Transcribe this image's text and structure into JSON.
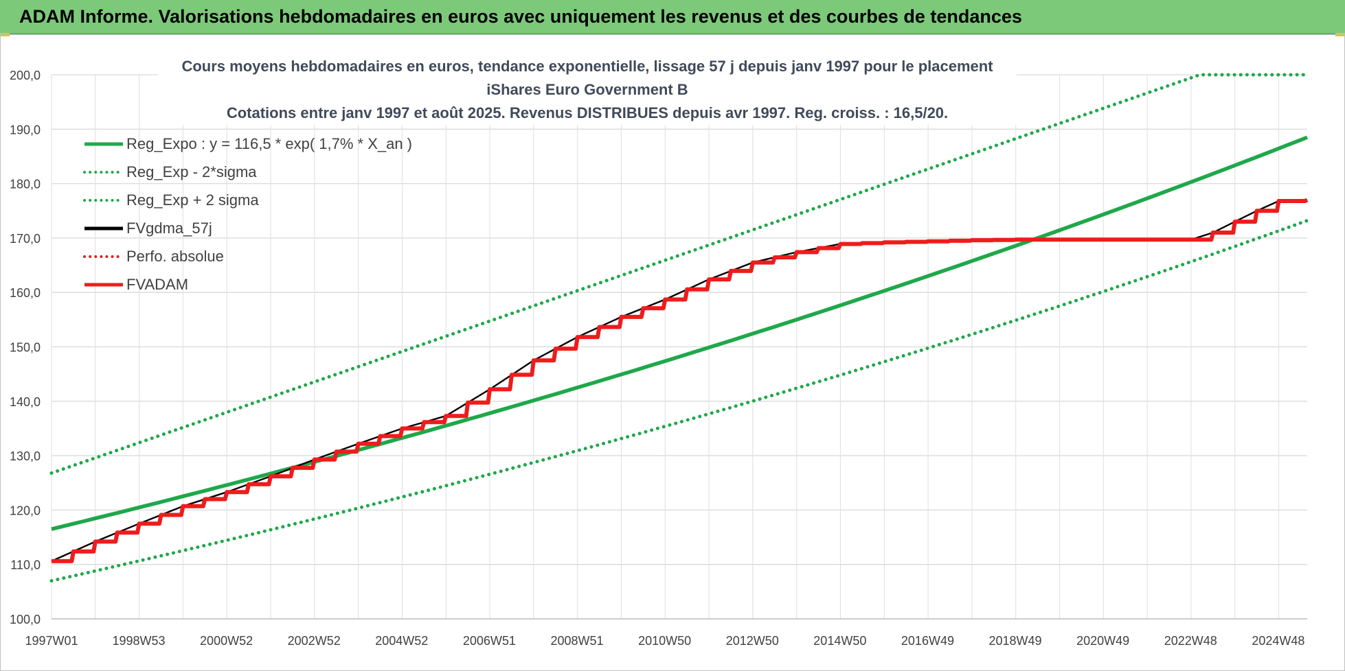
{
  "header": {
    "title": "ADAM Informe. Valorisations hebdomadaires en euros avec uniquement les revenus et des courbes de tendances"
  },
  "chart_data": {
    "type": "line",
    "title": "Cours moyens hebdomadaires en euros, tendance exponentielle, lissage 57 j depuis janv 1997 pour le placement iShares Euro Government B",
    "subtitle": "Cotations entre janv 1997 et août 2025.  Revenus DISTRIBUES depuis avr 1997. Reg. croiss. : 16,5/20.",
    "xlabel": "",
    "ylabel": "",
    "xlim": [
      1997.0,
      2025.65
    ],
    "ylim": [
      100,
      200
    ],
    "y_ticks": [
      "100,0",
      "110,0",
      "120,0",
      "130,0",
      "140,0",
      "150,0",
      "160,0",
      "170,0",
      "180,0",
      "190,0",
      "200,0"
    ],
    "x_ticks": [
      {
        "label": "1997W01",
        "x": 1997.0
      },
      {
        "label": "1998W53",
        "x": 1998.99
      },
      {
        "label": "2000W52",
        "x": 2000.99
      },
      {
        "label": "2002W52",
        "x": 2002.99
      },
      {
        "label": "2004W52",
        "x": 2004.99
      },
      {
        "label": "2006W51",
        "x": 2006.99
      },
      {
        "label": "2008W51",
        "x": 2008.99
      },
      {
        "label": "2010W50",
        "x": 2010.99
      },
      {
        "label": "2012W50",
        "x": 2012.99
      },
      {
        "label": "2014W50",
        "x": 2014.99
      },
      {
        "label": "2016W49",
        "x": 2016.99
      },
      {
        "label": "2018W49",
        "x": 2018.99
      },
      {
        "label": "2020W49",
        "x": 2020.99
      },
      {
        "label": "2022W48",
        "x": 2022.99
      },
      {
        "label": "2024W48",
        "x": 2024.99
      }
    ],
    "grid": true,
    "legend_position": "top-left",
    "series": [
      {
        "name": "Reg_Expo : y = 116,5 * exp( 1,7% *  X_an )",
        "color": "#1fa84a",
        "style": "solid",
        "x": [
          1997.0,
          2025.65
        ],
        "values": [
          116.5,
          188.5
        ]
      },
      {
        "name": "Reg_Exp - 2*sigma",
        "color": "#1fa84a",
        "style": "dotted",
        "x": [
          1997.0,
          2025.65
        ],
        "values": [
          107.0,
          173.2
        ]
      },
      {
        "name": "Reg_Exp + 2 sigma",
        "color": "#1fa84a",
        "style": "dotted",
        "x": [
          1997.0,
          2023.2,
          2025.65
        ],
        "values": [
          126.8,
          200.0,
          200.0
        ]
      },
      {
        "name": "FVgdma_57j",
        "color": "#000000",
        "style": "solid",
        "x": [
          1997.0,
          1998.0,
          1999.0,
          2000.0,
          2001.0,
          2002.0,
          2003.0,
          2004.0,
          2005.0,
          2006.0,
          2007.0,
          2008.0,
          2009.0,
          2010.0,
          2011.0,
          2012.0,
          2013.0,
          2014.0,
          2015.0,
          2016.0,
          2017.0,
          2018.0,
          2019.0,
          2020.0,
          2021.0,
          2022.0,
          2023.0,
          2023.5,
          2024.0,
          2024.5,
          2025.0,
          2025.65
        ],
        "values": [
          110.6,
          114.2,
          117.5,
          120.7,
          123.3,
          126.2,
          129.3,
          132.2,
          135.0,
          137.3,
          142.2,
          147.5,
          151.8,
          155.5,
          158.7,
          162.4,
          165.5,
          167.4,
          168.9,
          169.2,
          169.4,
          169.6,
          169.7,
          169.7,
          169.7,
          169.7,
          169.7,
          171.0,
          173.0,
          175.0,
          176.8,
          177.0
        ]
      },
      {
        "name": "Perfo. absolue",
        "color": "#e02020",
        "style": "dotted",
        "x": [],
        "values": []
      },
      {
        "name": "FVADAM",
        "color": "#ee1c1c",
        "style": "solid",
        "stepped": true,
        "x": [
          1997.0,
          1998.0,
          1999.0,
          2000.0,
          2001.0,
          2002.0,
          2003.0,
          2004.0,
          2005.0,
          2006.0,
          2007.0,
          2008.0,
          2009.0,
          2010.0,
          2011.0,
          2012.0,
          2013.0,
          2014.0,
          2015.0,
          2016.0,
          2017.0,
          2018.0,
          2019.0,
          2020.0,
          2021.0,
          2022.0,
          2023.0,
          2023.5,
          2024.0,
          2024.5,
          2025.0,
          2025.65
        ],
        "values": [
          110.6,
          114.2,
          117.5,
          120.7,
          123.3,
          126.2,
          129.3,
          132.2,
          135.0,
          137.3,
          142.2,
          147.5,
          151.8,
          155.5,
          158.7,
          162.4,
          165.5,
          167.4,
          168.9,
          169.2,
          169.4,
          169.6,
          169.7,
          169.7,
          169.7,
          169.7,
          169.7,
          171.0,
          173.0,
          175.0,
          176.8,
          177.0
        ]
      }
    ]
  }
}
